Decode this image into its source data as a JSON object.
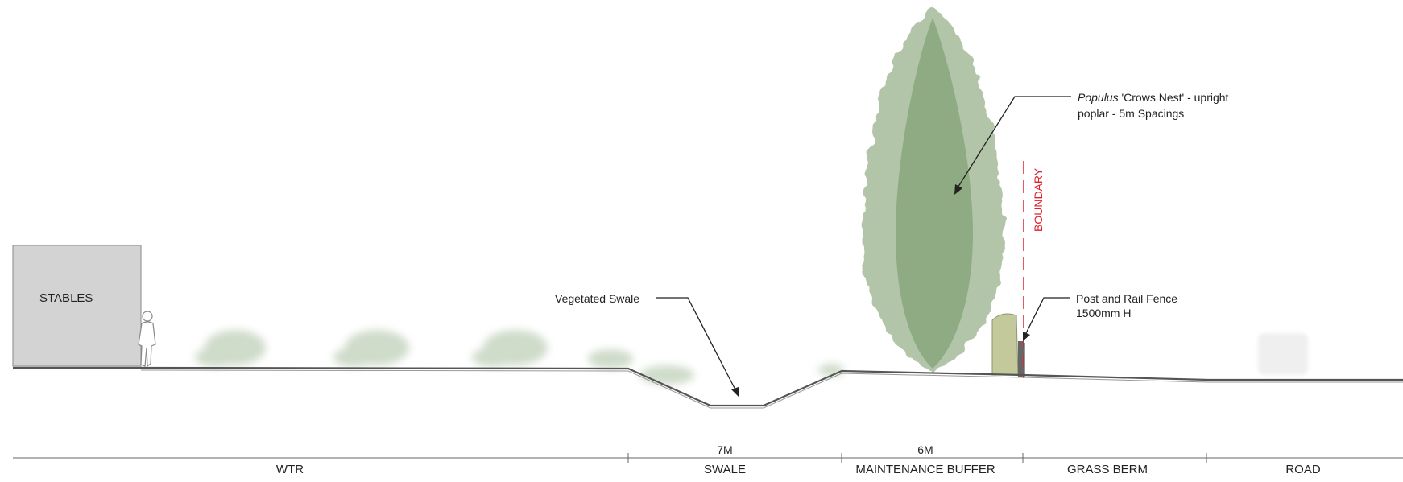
{
  "labels": {
    "stables": "STABLES",
    "boundary": "BOUNDARY",
    "vegetated_swale": "Vegetated Swale",
    "tree_callout_species": "Populus",
    "tree_callout_line1": "'Crows Nest' - upright",
    "tree_callout_line2": "poplar - 5m Spacings",
    "fence_callout_line1": "Post and Rail Fence",
    "fence_callout_line2": "1500mm H"
  },
  "zones": [
    {
      "name": "WTR"
    },
    {
      "name": "SWALE",
      "dimension": "7M"
    },
    {
      "name": "MAINTENANCE BUFFER",
      "dimension": "6M"
    },
    {
      "name": "GRASS BERM"
    },
    {
      "name": "ROAD"
    }
  ],
  "colors": {
    "tree_outer": "#b3c5a9",
    "tree_inner": "#8fab84",
    "shrub": "#c7d6c1",
    "building": "#d3d3d3",
    "ground": "#555555",
    "boundary": "#e0202a",
    "fence_post": "#666666",
    "hedge": "#c3c99a"
  }
}
